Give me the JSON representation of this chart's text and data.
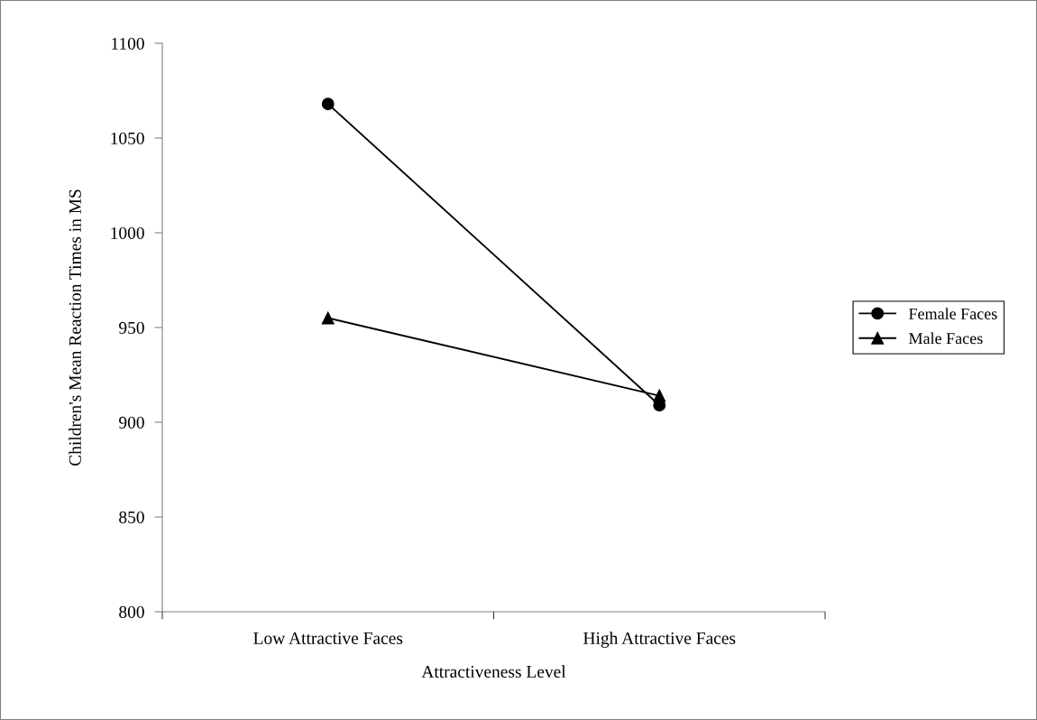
{
  "chart_data": {
    "type": "line",
    "xlabel": "Attractiveness Level",
    "ylabel": "Children's Mean Reaction Times in MS",
    "categories": [
      "Low Attractive Faces",
      "High Attractive Faces"
    ],
    "series": [
      {
        "name": "Female Faces",
        "color": "#000000",
        "marker": "circle",
        "values": [
          1068,
          909
        ]
      },
      {
        "name": "Male Faces",
        "color": "#000000",
        "marker": "triangle",
        "values": [
          955,
          914
        ]
      }
    ],
    "ylim": [
      800,
      1100
    ],
    "yticks": [
      800,
      850,
      900,
      950,
      1000,
      1050,
      1100
    ],
    "grid": false,
    "legend": "right",
    "line_style": "solid"
  }
}
